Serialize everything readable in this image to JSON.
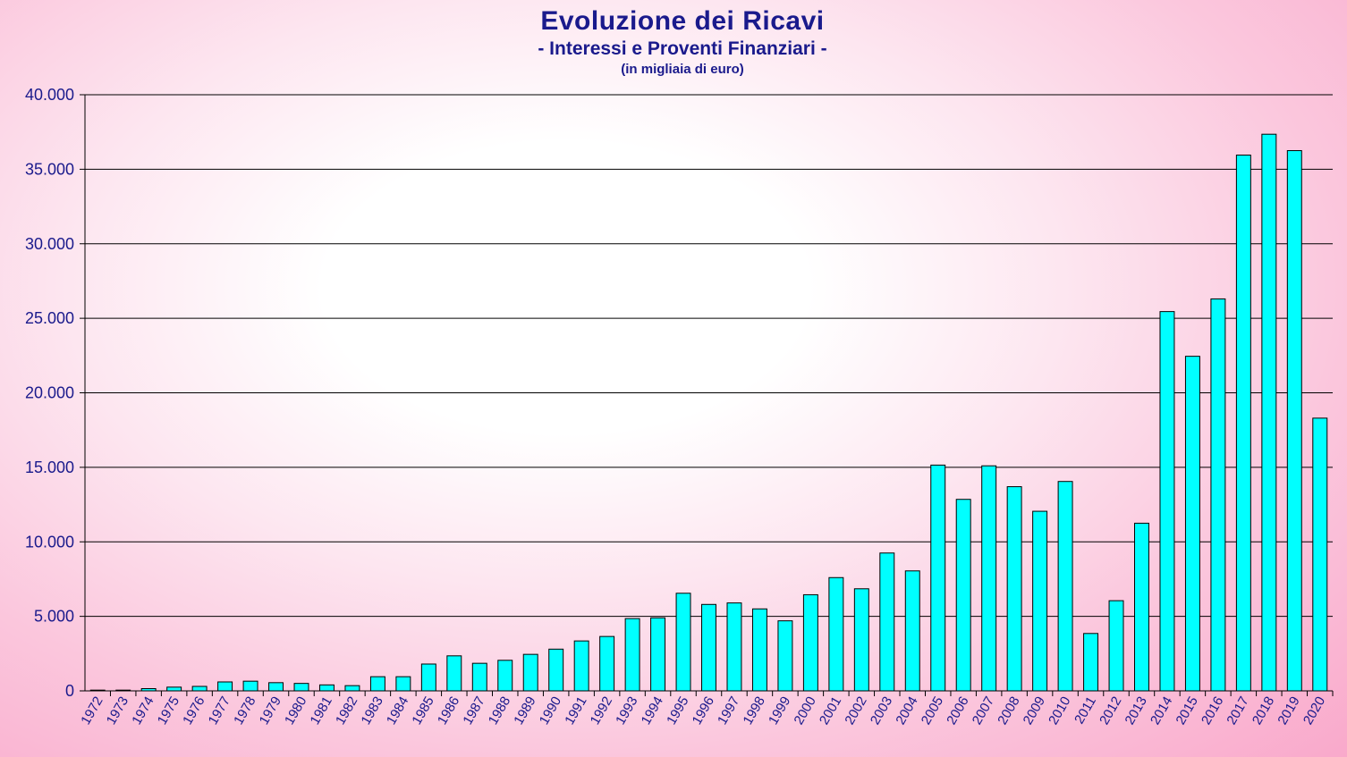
{
  "title": "Evoluzione dei Ricavi",
  "subtitle": "- Interessi e Proventi Finanziari -",
  "unit_note": "(in migliaia di euro)",
  "colors": {
    "bar_fill": "#00ffff",
    "bar_stroke": "#000000",
    "grid": "#000000",
    "text": "#1a1a8c"
  },
  "chart_data": {
    "type": "bar",
    "title": "Evoluzione dei Ricavi",
    "subtitle": "- Interessi e Proventi Finanziari -",
    "xlabel": "",
    "ylabel": "",
    "ylim": [
      0,
      40000
    ],
    "yticks": [
      0,
      5000,
      10000,
      15000,
      20000,
      25000,
      30000,
      35000,
      40000
    ],
    "ytick_labels": [
      "0",
      "5.000",
      "10.000",
      "15.000",
      "20.000",
      "25.000",
      "30.000",
      "35.000",
      "40.000"
    ],
    "grid": true,
    "legend": "none",
    "categories": [
      "1972",
      "1973",
      "1974",
      "1975",
      "1976",
      "1977",
      "1978",
      "1979",
      "1980",
      "1981",
      "1982",
      "1983",
      "1984",
      "1985",
      "1986",
      "1987",
      "1988",
      "1989",
      "1990",
      "1991",
      "1992",
      "1993",
      "1994",
      "1995",
      "1996",
      "1997",
      "1998",
      "1999",
      "2000",
      "2001",
      "2002",
      "2003",
      "2004",
      "2005",
      "2006",
      "2007",
      "2008",
      "2009",
      "2010",
      "2011",
      "2012",
      "2013",
      "2014",
      "2015",
      "2016",
      "2017",
      "2018",
      "2019",
      "2020"
    ],
    "values": [
      50,
      50,
      150,
      250,
      300,
      600,
      650,
      550,
      500,
      400,
      350,
      950,
      950,
      1800,
      2350,
      1850,
      2050,
      2450,
      2800,
      3350,
      3650,
      4850,
      4900,
      6550,
      5800,
      5900,
      5500,
      4700,
      6450,
      7600,
      6850,
      9250,
      8050,
      15150,
      12850,
      15100,
      13700,
      12050,
      14050,
      3850,
      6050,
      11250,
      25450,
      22450,
      26300,
      35950,
      37350,
      36250,
      18300
    ]
  }
}
